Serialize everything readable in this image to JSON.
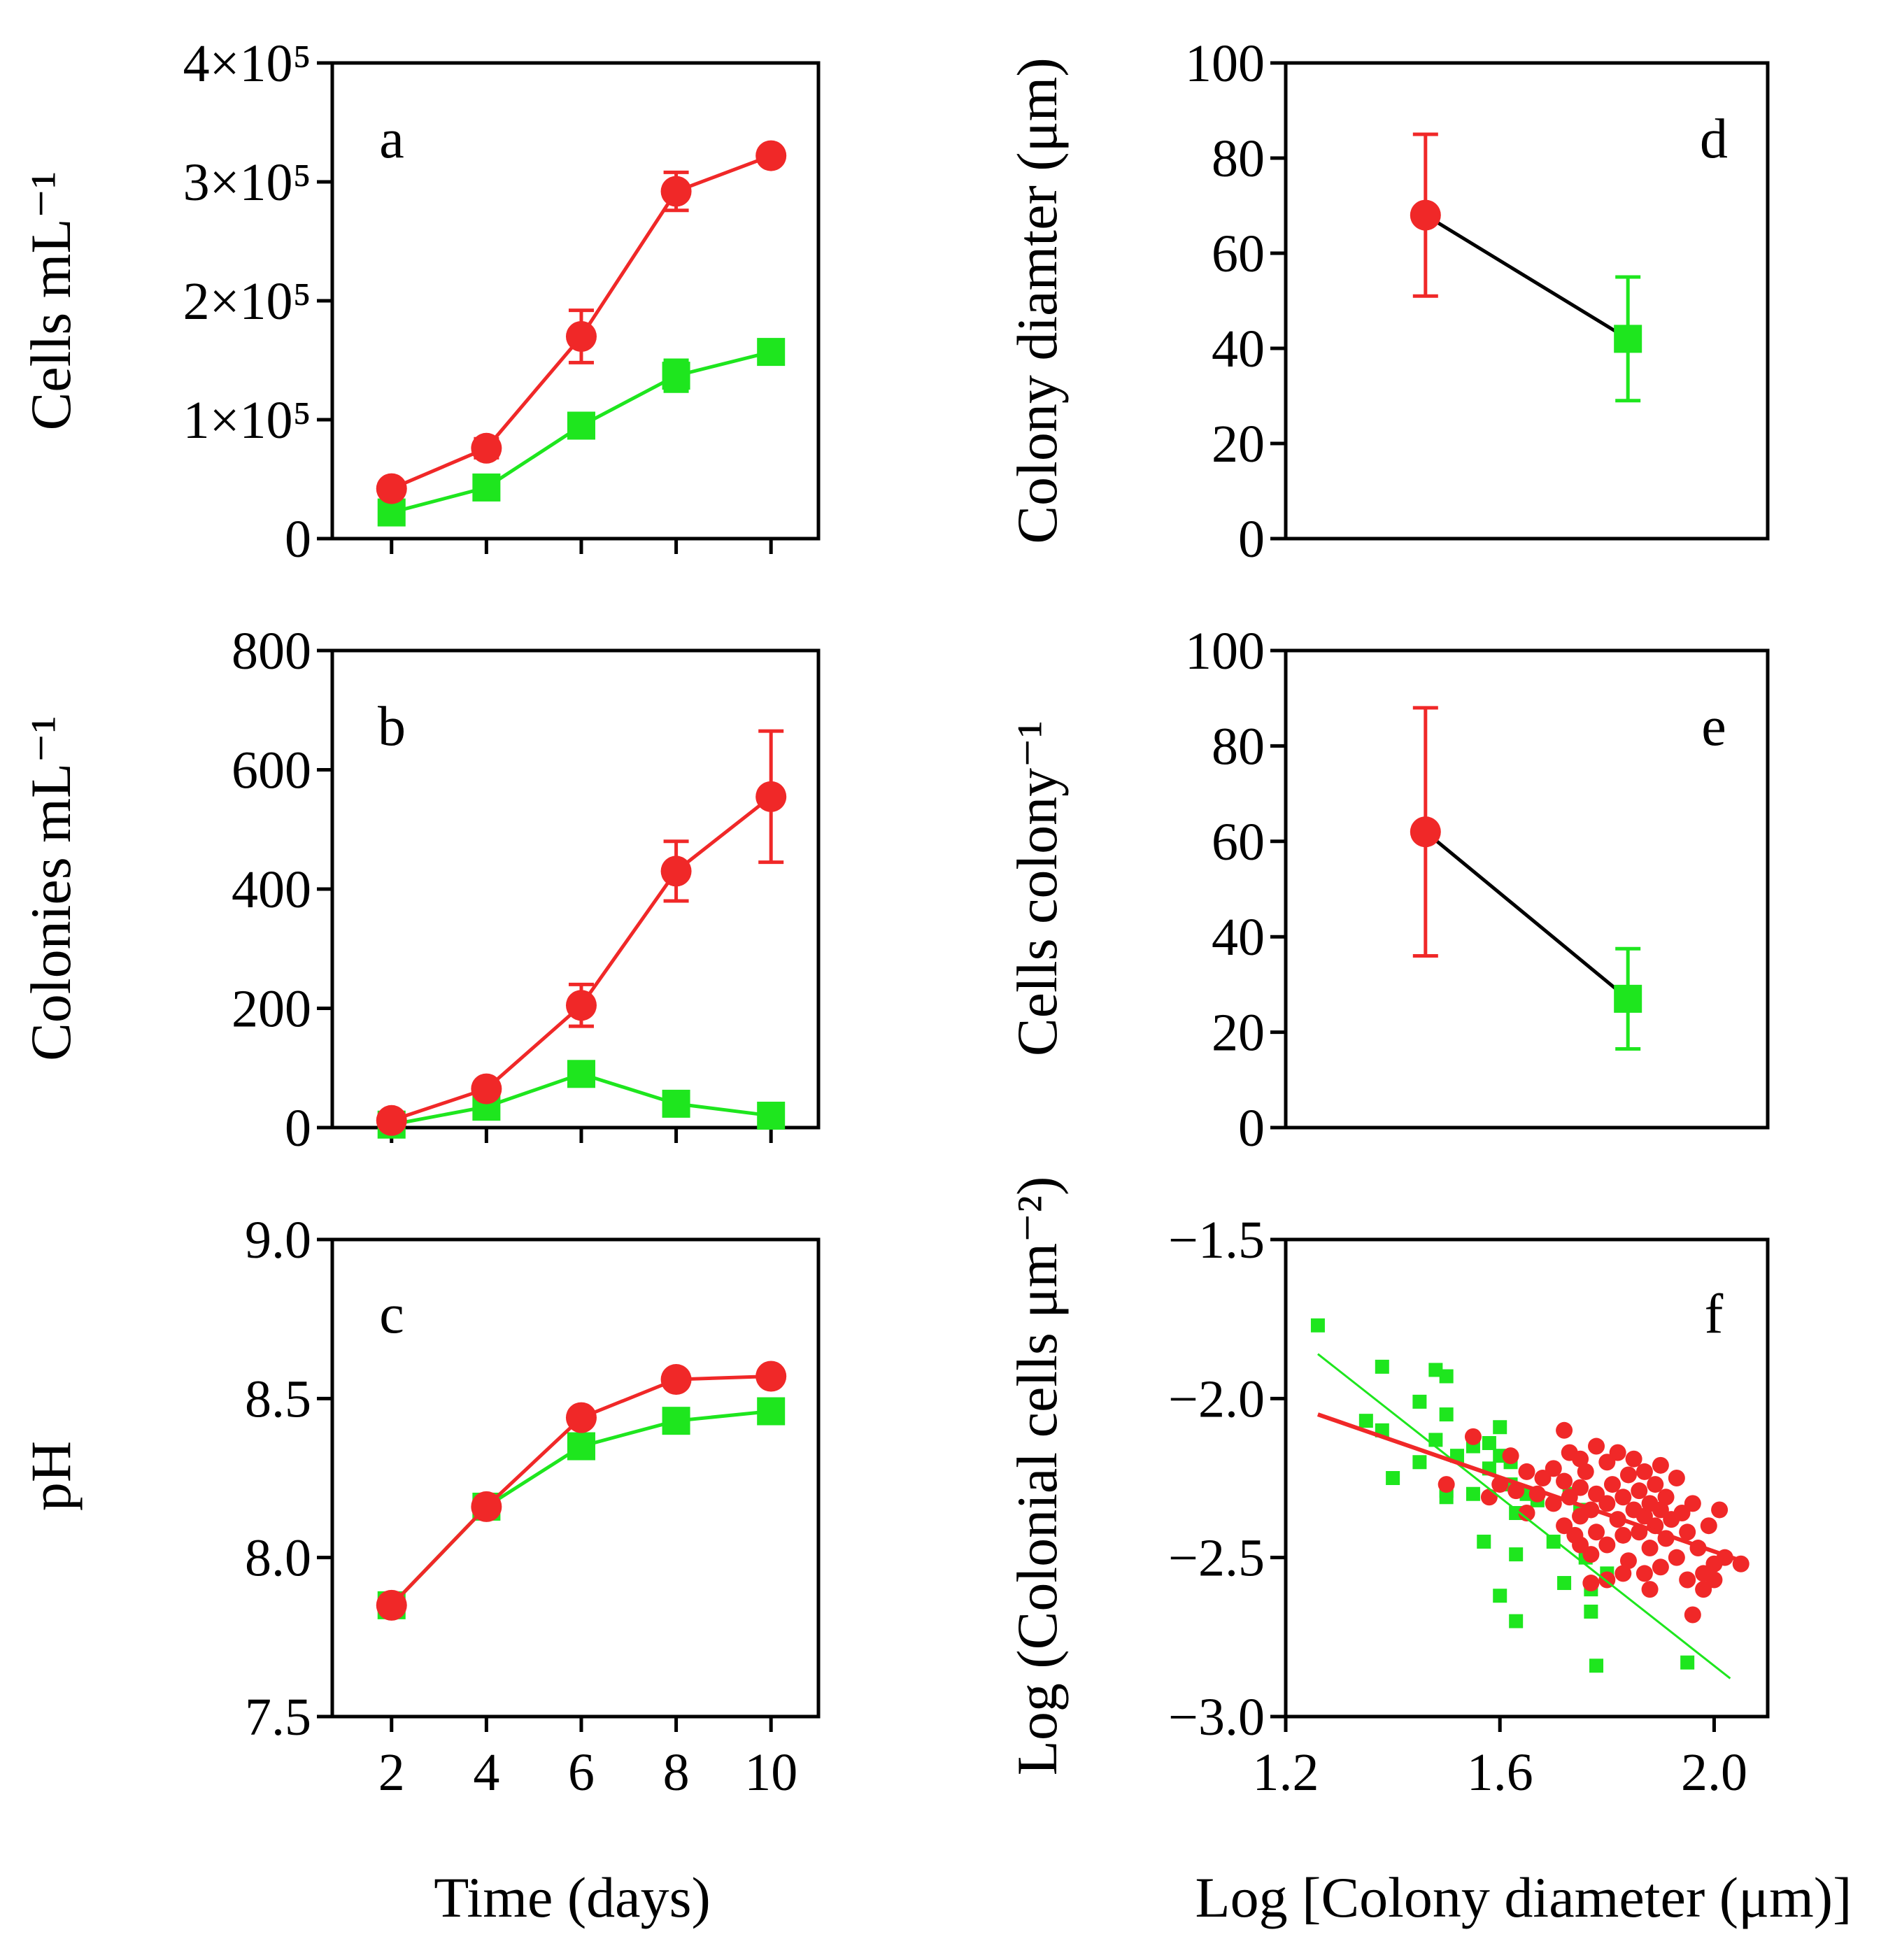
{
  "colors": {
    "red": "#f02828",
    "green": "#1ee61e",
    "black": "#000000"
  },
  "x_axis_left": {
    "title": "Time (days)",
    "ticks": [
      2,
      4,
      6,
      8,
      10
    ]
  },
  "x_axis_right": {
    "title": "Log [Colony diameter (μm)]"
  },
  "chart_data": [
    {
      "panel": "a",
      "type": "line",
      "ylabel": "Cells mL⁻¹",
      "xlim": [
        0.75,
        11
      ],
      "ylim": [
        0,
        400000
      ],
      "yticks": [
        0,
        100000,
        200000,
        300000,
        400000
      ],
      "ytick_labels": [
        "0",
        "1×10⁵",
        "2×10⁵",
        "3×10⁵",
        "4×10⁵"
      ],
      "x": [
        2,
        4,
        6,
        8,
        10
      ],
      "series": [
        {
          "name": "red",
          "color": "red",
          "marker": "circle",
          "values": [
            42000,
            76000,
            170000,
            292000,
            322000
          ],
          "err": [
            4000,
            8000,
            22000,
            16000,
            5000
          ]
        },
        {
          "name": "green",
          "color": "green",
          "marker": "square",
          "values": [
            22000,
            43000,
            95000,
            137000,
            157000
          ],
          "err": [
            3000,
            5000,
            6000,
            13000,
            10000
          ]
        }
      ]
    },
    {
      "panel": "b",
      "type": "line",
      "ylabel": "Colonies mL⁻¹",
      "xlim": [
        0.75,
        11
      ],
      "ylim": [
        0,
        800
      ],
      "yticks": [
        0,
        200,
        400,
        600,
        800
      ],
      "ytick_labels": [
        "0",
        "200",
        "400",
        "600",
        "800"
      ],
      "x": [
        2,
        4,
        6,
        8,
        10
      ],
      "series": [
        {
          "name": "red",
          "color": "red",
          "marker": "circle",
          "values": [
            12,
            65,
            205,
            430,
            555
          ],
          "err": [
            4,
            8,
            35,
            50,
            110
          ]
        },
        {
          "name": "green",
          "color": "green",
          "marker": "square",
          "values": [
            5,
            35,
            90,
            40,
            20
          ],
          "err": [
            2,
            5,
            8,
            5,
            3
          ]
        }
      ]
    },
    {
      "panel": "c",
      "type": "line",
      "ylabel": "pH",
      "xlim": [
        0.75,
        11
      ],
      "ylim": [
        7.5,
        9.0
      ],
      "yticks": [
        7.5,
        8.0,
        8.5,
        9.0
      ],
      "ytick_labels": [
        "7.5",
        "8.0",
        "8.5",
        "9.0"
      ],
      "x": [
        2,
        4,
        6,
        8,
        10
      ],
      "series": [
        {
          "name": "red",
          "color": "red",
          "marker": "circle",
          "values": [
            7.85,
            8.16,
            8.44,
            8.56,
            8.57
          ]
        },
        {
          "name": "green",
          "color": "green",
          "marker": "square",
          "values": [
            7.85,
            8.16,
            8.35,
            8.43,
            8.46
          ]
        }
      ]
    },
    {
      "panel": "d",
      "type": "line",
      "ylabel": "Colony diamter (μm)",
      "xlim": [
        0,
        1
      ],
      "ylim": [
        0,
        100
      ],
      "yticks": [
        0,
        20,
        40,
        60,
        80,
        100
      ],
      "ytick_labels": [
        "0",
        "20",
        "40",
        "60",
        "80",
        "100"
      ],
      "connector_color": "black",
      "points": [
        {
          "x": 0.29,
          "y": 68,
          "err": 17,
          "color": "red",
          "marker": "circle"
        },
        {
          "x": 0.71,
          "y": 42,
          "err": 13,
          "color": "green",
          "marker": "square"
        }
      ]
    },
    {
      "panel": "e",
      "type": "line",
      "ylabel": "Cells colony⁻¹",
      "xlim": [
        0,
        1
      ],
      "ylim": [
        0,
        100
      ],
      "yticks": [
        0,
        20,
        40,
        60,
        80,
        100
      ],
      "ytick_labels": [
        "0",
        "20",
        "40",
        "60",
        "80",
        "100"
      ],
      "connector_color": "black",
      "points": [
        {
          "x": 0.29,
          "y": 62,
          "err": 26,
          "color": "red",
          "marker": "circle"
        },
        {
          "x": 0.71,
          "y": 27,
          "err": 10.5,
          "color": "green",
          "marker": "square"
        }
      ]
    },
    {
      "panel": "f",
      "type": "scatter",
      "ylabel": "Log (Colonial cells μm⁻²)",
      "xlim": [
        1.2,
        2.1
      ],
      "ylim": [
        -3.0,
        -1.5
      ],
      "xticks": [
        1.2,
        1.6,
        2.0
      ],
      "xtick_labels": [
        "1.2",
        "1.6",
        "2.0"
      ],
      "yticks": [
        -3.0,
        -2.5,
        -2.0,
        -1.5
      ],
      "ytick_labels": [
        "−3.0",
        "−2.5",
        "−2.0",
        "−1.5"
      ],
      "series": [
        {
          "name": "green",
          "color": "green",
          "marker": "square",
          "fit": {
            "x": [
              1.26,
              2.03
            ],
            "y": [
              -1.86,
              -2.88
            ]
          },
          "points": [
            [
              1.26,
              -1.77
            ],
            [
              1.35,
              -2.07
            ],
            [
              1.38,
              -1.9
            ],
            [
              1.38,
              -2.1
            ],
            [
              1.4,
              -2.25
            ],
            [
              1.45,
              -2.01
            ],
            [
              1.45,
              -2.2
            ],
            [
              1.48,
              -1.91
            ],
            [
              1.48,
              -2.13
            ],
            [
              1.5,
              -1.93
            ],
            [
              1.5,
              -2.05
            ],
            [
              1.5,
              -2.29
            ],
            [
              1.5,
              -2.31
            ],
            [
              1.52,
              -2.18
            ],
            [
              1.55,
              -2.15
            ],
            [
              1.55,
              -2.3
            ],
            [
              1.57,
              -2.45
            ],
            [
              1.58,
              -2.14
            ],
            [
              1.58,
              -2.22
            ],
            [
              1.6,
              -2.09
            ],
            [
              1.6,
              -2.18
            ],
            [
              1.6,
              -2.62
            ],
            [
              1.62,
              -2.2
            ],
            [
              1.62,
              -2.27
            ],
            [
              1.63,
              -2.36
            ],
            [
              1.63,
              -2.49
            ],
            [
              1.63,
              -2.7
            ],
            [
              1.65,
              -2.3
            ],
            [
              1.67,
              -2.32
            ],
            [
              1.7,
              -2.45
            ],
            [
              1.72,
              -2.58
            ],
            [
              1.73,
              -2.3
            ],
            [
              1.75,
              -2.35
            ],
            [
              1.76,
              -2.5
            ],
            [
              1.77,
              -2.6
            ],
            [
              1.77,
              -2.67
            ],
            [
              1.78,
              -2.84
            ],
            [
              1.8,
              -2.55
            ],
            [
              1.95,
              -2.83
            ]
          ]
        },
        {
          "name": "red",
          "color": "red",
          "marker": "circle",
          "fit": {
            "x": [
              1.26,
              2.05
            ],
            "y": [
              -2.05,
              -2.51
            ]
          },
          "points": [
            [
              1.5,
              -2.27
            ],
            [
              1.55,
              -2.12
            ],
            [
              1.58,
              -2.31
            ],
            [
              1.6,
              -2.27
            ],
            [
              1.62,
              -2.18
            ],
            [
              1.63,
              -2.29
            ],
            [
              1.65,
              -2.23
            ],
            [
              1.65,
              -2.36
            ],
            [
              1.67,
              -2.3
            ],
            [
              1.68,
              -2.25
            ],
            [
              1.7,
              -2.22
            ],
            [
              1.7,
              -2.33
            ],
            [
              1.72,
              -2.1
            ],
            [
              1.72,
              -2.26
            ],
            [
              1.72,
              -2.4
            ],
            [
              1.73,
              -2.17
            ],
            [
              1.73,
              -2.31
            ],
            [
              1.75,
              -2.19
            ],
            [
              1.75,
              -2.28
            ],
            [
              1.75,
              -2.37
            ],
            [
              1.75,
              -2.46
            ],
            [
              1.76,
              -2.23
            ],
            [
              1.77,
              -2.35
            ],
            [
              1.77,
              -2.49
            ],
            [
              1.77,
              -2.58
            ],
            [
              1.78,
              -2.15
            ],
            [
              1.78,
              -2.3
            ],
            [
              1.78,
              -2.42
            ],
            [
              1.8,
              -2.2
            ],
            [
              1.8,
              -2.33
            ],
            [
              1.8,
              -2.46
            ],
            [
              1.8,
              -2.57
            ],
            [
              1.81,
              -2.27
            ],
            [
              1.82,
              -2.38
            ],
            [
              1.82,
              -2.17
            ],
            [
              1.83,
              -2.31
            ],
            [
              1.83,
              -2.43
            ],
            [
              1.84,
              -2.24
            ],
            [
              1.84,
              -2.51
            ],
            [
              1.85,
              -2.35
            ],
            [
              1.85,
              -2.19
            ],
            [
              1.86,
              -2.42
            ],
            [
              1.86,
              -2.29
            ],
            [
              1.87,
              -2.37
            ],
            [
              1.87,
              -2.23
            ],
            [
              1.87,
              -2.55
            ],
            [
              1.88,
              -2.33
            ],
            [
              1.88,
              -2.47
            ],
            [
              1.89,
              -2.27
            ],
            [
              1.89,
              -2.4
            ],
            [
              1.9,
              -2.21
            ],
            [
              1.9,
              -2.35
            ],
            [
              1.9,
              -2.53
            ],
            [
              1.91,
              -2.31
            ],
            [
              1.91,
              -2.44
            ],
            [
              1.92,
              -2.38
            ],
            [
              1.93,
              -2.25
            ],
            [
              1.93,
              -2.5
            ],
            [
              1.94,
              -2.36
            ],
            [
              1.95,
              -2.42
            ],
            [
              1.95,
              -2.57
            ],
            [
              1.96,
              -2.33
            ],
            [
              1.97,
              -2.47
            ],
            [
              1.98,
              -2.55
            ],
            [
              1.98,
              -2.6
            ],
            [
              1.99,
              -2.4
            ],
            [
              2.0,
              -2.52
            ],
            [
              2.0,
              -2.57
            ],
            [
              2.01,
              -2.35
            ],
            [
              2.02,
              -2.5
            ],
            [
              2.05,
              -2.52
            ],
            [
              1.96,
              -2.68
            ],
            [
              1.88,
              -2.6
            ],
            [
              1.83,
              -2.55
            ],
            [
              1.74,
              -2.43
            ]
          ]
        }
      ]
    }
  ]
}
